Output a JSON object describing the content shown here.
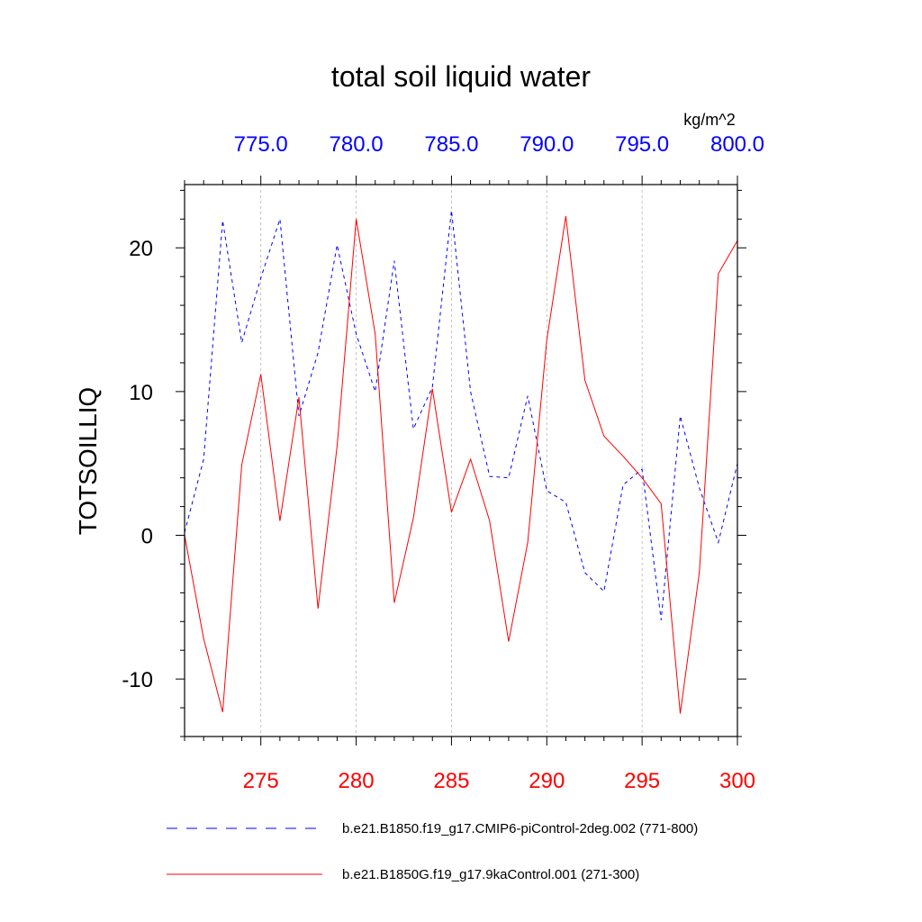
{
  "chart_data": {
    "type": "line",
    "title": "total soil liquid water",
    "units": "kg/m^2",
    "ylabel": "TOTSOILLIQ",
    "ylim": [
      -14.0,
      24.4
    ],
    "yticks": [
      -10,
      0,
      10,
      20
    ],
    "ytick_labels": [
      "-10",
      "0",
      "10",
      "20"
    ],
    "grid_x": true,
    "legend_position": "bottom",
    "bottom_axis": {
      "xlim": [
        271,
        300
      ],
      "ticks": [
        275,
        280,
        285,
        290,
        295,
        300
      ],
      "tick_labels": [
        "275",
        "280",
        "285",
        "290",
        "295",
        "300"
      ],
      "color": "#ff0000"
    },
    "top_axis": {
      "xlim": [
        771,
        800
      ],
      "ticks": [
        775,
        780,
        785,
        790,
        795,
        800
      ],
      "tick_labels": [
        "775.0",
        "780.0",
        "785.0",
        "790.0",
        "795.0",
        "800.0"
      ],
      "color": "#0000ff"
    },
    "series": [
      {
        "name": "b.e21.B1850.f19_g17.CMIP6-piControl-2deg.002 (771-800)",
        "axis": "top",
        "color": "#0000ff",
        "style": "dashed",
        "x": [
          771,
          772,
          773,
          774,
          775,
          776,
          777,
          778,
          779,
          780,
          781,
          782,
          783,
          784,
          785,
          786,
          787,
          788,
          789,
          790,
          791,
          792,
          793,
          794,
          795,
          796,
          797,
          798,
          799,
          800
        ],
        "values": [
          0.2,
          5.3,
          21.9,
          13.4,
          17.9,
          22.0,
          8.3,
          12.7,
          20.2,
          14.0,
          10.0,
          19.1,
          7.4,
          10.3,
          22.6,
          10.0,
          4.1,
          4.0,
          9.7,
          3.1,
          2.3,
          -2.6,
          -3.9,
          3.5,
          4.6,
          -5.9,
          8.3,
          3.3,
          -0.5,
          5.0
        ]
      },
      {
        "name": "b.e21.B1850G.f19_g17.9kaControl.001 (271-300)",
        "axis": "bottom",
        "color": "#ff0000",
        "style": "solid",
        "x": [
          271,
          272,
          273,
          274,
          275,
          276,
          277,
          278,
          279,
          280,
          281,
          282,
          283,
          284,
          285,
          286,
          287,
          288,
          289,
          290,
          291,
          292,
          293,
          294,
          295,
          296,
          297,
          298,
          299,
          300
        ],
        "values": [
          0.0,
          -7.2,
          -12.3,
          4.9,
          11.2,
          1.0,
          9.6,
          -5.1,
          6.2,
          22.0,
          14.0,
          -4.7,
          1.2,
          10.2,
          1.6,
          5.3,
          1.0,
          -7.4,
          -0.5,
          13.6,
          22.2,
          10.8,
          6.9,
          5.5,
          4.0,
          2.2,
          -12.4,
          -2.6,
          18.2,
          20.5
        ]
      }
    ]
  }
}
